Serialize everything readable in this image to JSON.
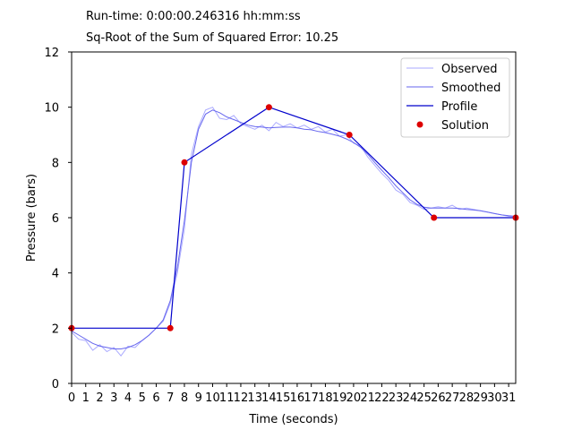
{
  "header": {
    "runtime": "Run-time: 0:00:00.246316 hh:mm:ss",
    "sse": "Sq-Root of the Sum of Squared Error: 10.25"
  },
  "chart_data": {
    "type": "line",
    "title": "",
    "xlabel": "Time (seconds)",
    "ylabel": "Pressure (bars)",
    "xlim": [
      0,
      31.5
    ],
    "ylim": [
      0,
      12
    ],
    "xticks": [
      0,
      1,
      2,
      3,
      4,
      5,
      6,
      7,
      8,
      9,
      10,
      11,
      12,
      13,
      14,
      15,
      16,
      17,
      18,
      19,
      20,
      21,
      22,
      23,
      24,
      25,
      26,
      27,
      28,
      29,
      30,
      31
    ],
    "yticks": [
      0,
      2,
      4,
      6,
      8,
      10,
      12
    ],
    "grid": false,
    "legend_position": "top-right",
    "series": [
      {
        "name": "Observed",
        "color": "#aaaaff",
        "x": [
          0,
          0.5,
          1,
          1.5,
          2,
          2.5,
          3,
          3.5,
          4,
          4.5,
          5,
          5.5,
          6,
          6.5,
          7,
          7.5,
          8,
          8.5,
          9,
          9.5,
          10,
          10.5,
          11,
          11.5,
          12,
          12.5,
          13,
          13.5,
          14,
          14.5,
          15,
          15.5,
          16,
          16.5,
          17,
          17.5,
          18,
          18.5,
          19,
          19.5,
          20,
          20.5,
          21,
          21.5,
          22,
          22.5,
          23,
          23.5,
          24,
          24.5,
          25,
          25.5,
          26,
          26.5,
          27,
          27.5,
          28,
          28.5,
          29,
          29.5,
          30,
          30.5,
          31,
          31.5
        ],
        "values": [
          1.85,
          1.6,
          1.55,
          1.2,
          1.4,
          1.15,
          1.3,
          1.0,
          1.35,
          1.3,
          1.55,
          1.75,
          2.0,
          2.25,
          2.9,
          4.0,
          5.6,
          8.3,
          9.3,
          9.9,
          10.0,
          9.6,
          9.55,
          9.7,
          9.4,
          9.3,
          9.2,
          9.35,
          9.15,
          9.45,
          9.3,
          9.4,
          9.25,
          9.35,
          9.2,
          9.3,
          9.1,
          9.2,
          8.95,
          9.0,
          8.7,
          8.6,
          8.2,
          7.9,
          7.6,
          7.35,
          7.0,
          6.85,
          6.55,
          6.45,
          6.3,
          6.35,
          6.4,
          6.35,
          6.45,
          6.3,
          6.35,
          6.3,
          6.25,
          6.2,
          6.15,
          6.1,
          6.05,
          6.05
        ]
      },
      {
        "name": "Smoothed",
        "color": "#6666ee",
        "x": [
          0,
          0.5,
          1,
          1.5,
          2,
          2.5,
          3,
          3.5,
          4,
          4.5,
          5,
          5.5,
          6,
          6.5,
          7,
          7.5,
          8,
          8.5,
          9,
          9.5,
          10,
          10.5,
          11,
          11.5,
          12,
          12.5,
          13,
          13.5,
          14,
          14.5,
          15,
          15.5,
          16,
          16.5,
          17,
          17.5,
          18,
          18.5,
          19,
          19.5,
          20,
          20.5,
          21,
          21.5,
          22,
          22.5,
          23,
          23.5,
          24,
          24.5,
          25,
          25.5,
          26,
          26.5,
          27,
          27.5,
          28,
          28.5,
          29,
          29.5,
          30,
          30.5,
          31,
          31.5
        ],
        "values": [
          1.9,
          1.75,
          1.6,
          1.45,
          1.35,
          1.3,
          1.25,
          1.25,
          1.3,
          1.4,
          1.55,
          1.75,
          2.0,
          2.3,
          3.0,
          4.2,
          5.9,
          8.0,
          9.2,
          9.75,
          9.9,
          9.8,
          9.65,
          9.55,
          9.45,
          9.35,
          9.3,
          9.28,
          9.25,
          9.27,
          9.28,
          9.28,
          9.25,
          9.2,
          9.18,
          9.12,
          9.08,
          9.02,
          8.95,
          8.85,
          8.72,
          8.55,
          8.3,
          8.0,
          7.72,
          7.45,
          7.15,
          6.9,
          6.65,
          6.48,
          6.38,
          6.35,
          6.35,
          6.35,
          6.35,
          6.33,
          6.3,
          6.28,
          6.25,
          6.2,
          6.15,
          6.1,
          6.07,
          6.05
        ]
      },
      {
        "name": "Profile",
        "color": "#0000cc",
        "x": [
          0,
          7,
          8,
          14,
          19.7,
          25.7,
          31.5
        ],
        "values": [
          2,
          2,
          8,
          10,
          9,
          6,
          6
        ]
      }
    ],
    "points": {
      "name": "Solution",
      "color": "#dd0000",
      "x": [
        0,
        7,
        8,
        14,
        19.7,
        25.7,
        31.5
      ],
      "values": [
        2,
        2,
        8,
        10,
        9,
        6,
        6
      ]
    }
  }
}
